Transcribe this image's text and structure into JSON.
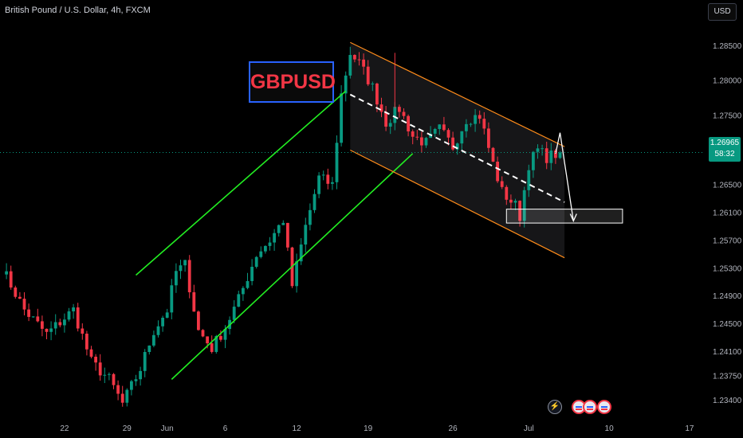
{
  "header": {
    "title": "British Pound / U.S. Dollar, 4h, FXCM"
  },
  "currency_button": "USD",
  "current_price": {
    "value": "1.26965",
    "countdown": "58:32"
  },
  "brand_label": "GBPUSD",
  "colors": {
    "up": "#089981",
    "down": "#f23645",
    "up_channel": "#22ee22",
    "down_channel": "#ff8c1a",
    "zone": "#ffffff"
  },
  "icons": [
    "lightning-icon",
    "us-flag-icon",
    "us-flag-icon",
    "us-flag-icon"
  ],
  "chart_data": {
    "type": "candlestick",
    "symbol": "GBPUSD",
    "interval": "4h",
    "source": "FXCM",
    "ylim": [
      1.232,
      1.29
    ],
    "y_ticks": [
      "1.28500",
      "1.28000",
      "1.27500",
      "1.26500",
      "1.26100",
      "1.25700",
      "1.25300",
      "1.24900",
      "1.24500",
      "1.24100",
      "1.23750",
      "1.23400"
    ],
    "y_tick_values": [
      1.285,
      1.28,
      1.275,
      1.265,
      1.261,
      1.257,
      1.253,
      1.249,
      1.245,
      1.241,
      1.2375,
      1.234
    ],
    "x_ticks": [
      "22",
      "29",
      "Jun",
      "6",
      "12",
      "19",
      "26",
      "Jul",
      "10",
      "17"
    ],
    "x_tick_index": [
      14,
      28,
      37,
      50,
      66,
      82,
      101,
      118,
      136,
      154
    ],
    "last_price": 1.26965,
    "key_prices": [
      {
        "i": 0,
        "p": 1.253
      },
      {
        "i": 5,
        "p": 1.247
      },
      {
        "i": 10,
        "p": 1.2435
      },
      {
        "i": 16,
        "p": 1.247
      },
      {
        "i": 20,
        "p": 1.2395
      },
      {
        "i": 24,
        "p": 1.237
      },
      {
        "i": 27,
        "p": 1.2335
      },
      {
        "i": 31,
        "p": 1.2385
      },
      {
        "i": 34,
        "p": 1.244
      },
      {
        "i": 37,
        "p": 1.247
      },
      {
        "i": 39,
        "p": 1.2525
      },
      {
        "i": 41,
        "p": 1.2535
      },
      {
        "i": 44,
        "p": 1.244
      },
      {
        "i": 47,
        "p": 1.2415
      },
      {
        "i": 50,
        "p": 1.2445
      },
      {
        "i": 53,
        "p": 1.2485
      },
      {
        "i": 57,
        "p": 1.255
      },
      {
        "i": 60,
        "p": 1.257
      },
      {
        "i": 63,
        "p": 1.26
      },
      {
        "i": 65,
        "p": 1.2505
      },
      {
        "i": 68,
        "p": 1.259
      },
      {
        "i": 71,
        "p": 1.266
      },
      {
        "i": 74,
        "p": 1.265
      },
      {
        "i": 76,
        "p": 1.278
      },
      {
        "i": 78,
        "p": 1.284
      },
      {
        "i": 80,
        "p": 1.2825
      },
      {
        "i": 83,
        "p": 1.279
      },
      {
        "i": 86,
        "p": 1.274
      },
      {
        "i": 89,
        "p": 1.276
      },
      {
        "i": 92,
        "p": 1.272
      },
      {
        "i": 95,
        "p": 1.271
      },
      {
        "i": 98,
        "p": 1.273
      },
      {
        "i": 101,
        "p": 1.2705
      },
      {
        "i": 104,
        "p": 1.2745
      },
      {
        "i": 107,
        "p": 1.275
      },
      {
        "i": 110,
        "p": 1.268
      },
      {
        "i": 112,
        "p": 1.264
      },
      {
        "i": 115,
        "p": 1.262
      },
      {
        "i": 116,
        "p": 1.2605
      },
      {
        "i": 118,
        "p": 1.268
      },
      {
        "i": 120,
        "p": 1.27
      },
      {
        "i": 122,
        "p": 1.269
      },
      {
        "i": 125,
        "p": 1.26965
      }
    ],
    "drawings": [
      {
        "type": "channel-line",
        "color": "up_channel",
        "from": {
          "i": 30,
          "p": 1.252
        },
        "to": {
          "i": 77,
          "p": 1.2785
        }
      },
      {
        "type": "channel-line",
        "color": "up_channel",
        "from": {
          "i": 38,
          "p": 1.237
        },
        "to": {
          "i": 92,
          "p": 1.2695
        }
      },
      {
        "type": "channel-line",
        "color": "down_channel",
        "from": {
          "i": 78,
          "p": 1.2855
        },
        "to": {
          "i": 126,
          "p": 1.2705
        }
      },
      {
        "type": "channel-line",
        "color": "down_channel",
        "from": {
          "i": 78,
          "p": 1.27
        },
        "to": {
          "i": 126,
          "p": 1.2545
        }
      },
      {
        "type": "dashed-midline",
        "from": {
          "i": 78,
          "p": 1.278
        },
        "to": {
          "i": 126,
          "p": 1.2625
        }
      },
      {
        "type": "zone",
        "from": {
          "i": 113,
          "p": 1.2615
        },
        "to": {
          "i": 139,
          "p": 1.2595
        }
      },
      {
        "type": "projection",
        "points": [
          {
            "i": 124,
            "p": 1.2695
          },
          {
            "i": 125,
            "p": 1.2725
          },
          {
            "i": 128,
            "p": 1.2598
          }
        ]
      }
    ]
  }
}
